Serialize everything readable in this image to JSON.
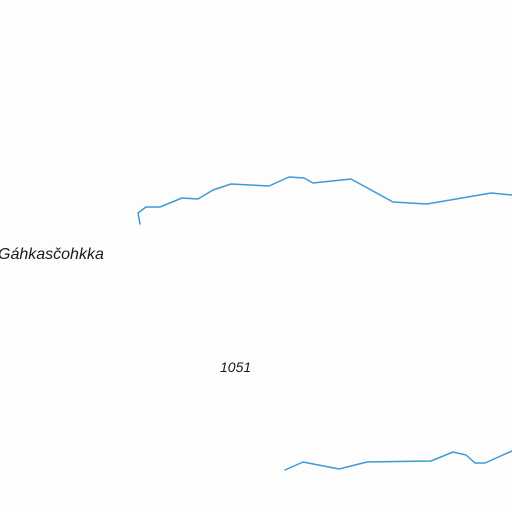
{
  "map": {
    "place_name": "Gáhkasčohkka",
    "elevation": "1051",
    "colors": {
      "background": "#fdfdfd",
      "stream": "#3d9ad8",
      "text": "#1a1a1a"
    }
  }
}
